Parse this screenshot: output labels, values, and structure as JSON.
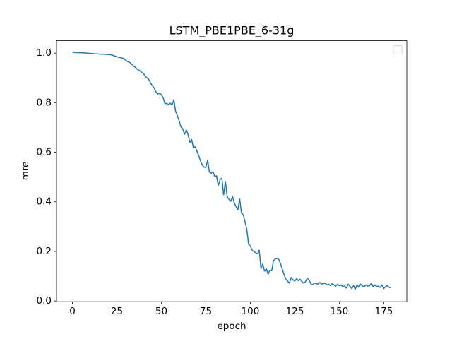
{
  "chart_data": {
    "type": "line",
    "title": "LSTM_PBE1PBE_6-31g",
    "x_label": "epoch",
    "y_label": "mre",
    "color": "#1f77b4",
    "legend": "upper right",
    "x": [
      0,
      1,
      2,
      3,
      4,
      5,
      6,
      7,
      8,
      9,
      10,
      11,
      12,
      13,
      14,
      15,
      16,
      17,
      18,
      19,
      20,
      21,
      22,
      23,
      24,
      25,
      26,
      27,
      28,
      29,
      30,
      31,
      32,
      33,
      34,
      35,
      36,
      37,
      38,
      39,
      40,
      41,
      42,
      43,
      44,
      45,
      46,
      47,
      48,
      49,
      50,
      51,
      52,
      53,
      54,
      55,
      56,
      57,
      58,
      59,
      60,
      61,
      62,
      63,
      64,
      65,
      66,
      67,
      68,
      69,
      70,
      71,
      72,
      73,
      74,
      75,
      76,
      77,
      78,
      79,
      80,
      81,
      82,
      83,
      84,
      85,
      86,
      87,
      88,
      89,
      90,
      91,
      92,
      93,
      94,
      95,
      96,
      97,
      98,
      99,
      100,
      101,
      102,
      103,
      104,
      105,
      106,
      107,
      108,
      109,
      110,
      111,
      112,
      113,
      114,
      115,
      116,
      117,
      118,
      119,
      120,
      121,
      122,
      123,
      124,
      125,
      126,
      127,
      128,
      129,
      130,
      131,
      132,
      133,
      134,
      135,
      136,
      137,
      138,
      139,
      140,
      141,
      142,
      143,
      144,
      145,
      146,
      147,
      148,
      149,
      150,
      151,
      152,
      153,
      154,
      155,
      156,
      157,
      158,
      159,
      160,
      161,
      162,
      163,
      164,
      165,
      166,
      167,
      168,
      169,
      170,
      171,
      172,
      173,
      174,
      175,
      176,
      177,
      178,
      179
    ],
    "values": [
      1.003,
      1.003,
      1.002,
      1.002,
      1.002,
      1.001,
      1.001,
      1.0,
      1.0,
      0.999,
      0.999,
      0.998,
      0.998,
      0.997,
      0.997,
      0.996,
      0.995,
      0.996,
      0.995,
      0.995,
      0.994,
      0.994,
      0.992,
      0.99,
      0.988,
      0.985,
      0.983,
      0.982,
      0.98,
      0.978,
      0.97,
      0.966,
      0.963,
      0.958,
      0.95,
      0.945,
      0.938,
      0.932,
      0.928,
      0.922,
      0.918,
      0.905,
      0.9,
      0.893,
      0.878,
      0.868,
      0.858,
      0.842,
      0.835,
      0.838,
      0.832,
      0.82,
      0.795,
      0.798,
      0.792,
      0.798,
      0.79,
      0.812,
      0.765,
      0.748,
      0.726,
      0.702,
      0.695,
      0.672,
      0.69,
      0.672,
      0.64,
      0.652,
      0.618,
      0.622,
      0.605,
      0.585,
      0.565,
      0.548,
      0.54,
      0.538,
      0.568,
      0.52,
      0.515,
      0.522,
      0.502,
      0.505,
      0.465,
      0.49,
      0.495,
      0.428,
      0.482,
      0.42,
      0.41,
      0.402,
      0.422,
      0.395,
      0.38,
      0.368,
      0.412,
      0.355,
      0.348,
      0.32,
      0.29,
      0.23,
      0.222,
      0.205,
      0.2,
      0.195,
      0.19,
      0.205,
      0.13,
      0.15,
      0.12,
      0.13,
      0.108,
      0.125,
      0.122,
      0.162,
      0.17,
      0.172,
      0.168,
      0.15,
      0.128,
      0.105,
      0.088,
      0.08,
      0.072,
      0.095,
      0.085,
      0.08,
      0.09,
      0.082,
      0.088,
      0.078,
      0.072,
      0.078,
      0.092,
      0.085,
      0.07,
      0.065,
      0.072,
      0.07,
      0.068,
      0.075,
      0.068,
      0.07,
      0.072,
      0.065,
      0.068,
      0.062,
      0.07,
      0.065,
      0.06,
      0.068,
      0.062,
      0.065,
      0.058,
      0.06,
      0.052,
      0.068,
      0.06,
      0.05,
      0.062,
      0.048,
      0.065,
      0.055,
      0.068,
      0.06,
      0.058,
      0.065,
      0.06,
      0.062,
      0.072,
      0.058,
      0.065,
      0.058,
      0.06,
      0.055,
      0.065,
      0.05,
      0.058,
      0.062,
      0.055,
      0.053
    ],
    "xlim": [
      -8.95,
      187.95
    ],
    "xticks": [
      0,
      25,
      50,
      75,
      100,
      125,
      150,
      175
    ],
    "ylim": [
      -0.003,
      1.05
    ],
    "yticks": [
      {
        "value": 0,
        "label": "0.0"
      },
      0.2,
      0.4,
      0.6,
      0.8,
      {
        "value": 1,
        "label": "1.0"
      }
    ]
  }
}
